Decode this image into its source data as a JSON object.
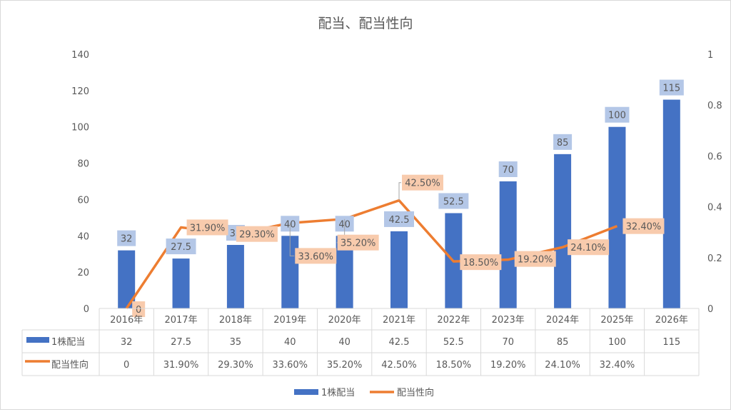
{
  "chart_data": {
    "type": "bar+line",
    "title": "配当、配当性向",
    "categories": [
      "2016年",
      "2017年",
      "2018年",
      "2019年",
      "2020年",
      "2021年",
      "2022年",
      "2023年",
      "2024年",
      "2025年",
      "2026年"
    ],
    "series": [
      {
        "name": "1株配当",
        "type": "bar",
        "axis": "left",
        "color": "#4472c4",
        "label_bg": "#b4c7e7",
        "values": [
          32,
          27.5,
          35,
          40,
          40,
          42.5,
          52.5,
          70,
          85,
          100,
          115
        ],
        "labels": [
          "32",
          "27.5",
          "35",
          "40",
          "40",
          "42.5",
          "52.5",
          "70",
          "85",
          "100",
          "115"
        ]
      },
      {
        "name": "配当性向",
        "type": "line",
        "axis": "right",
        "color": "#ed7d31",
        "label_bg": "#f8cbad",
        "values": [
          0,
          0.319,
          0.293,
          0.336,
          0.352,
          0.425,
          0.185,
          0.192,
          0.241,
          0.324,
          null
        ],
        "labels": [
          "0",
          "31.90%",
          "29.30%",
          "33.60%",
          "35.20%",
          "42.50%",
          "18.50%",
          "19.20%",
          "24.10%",
          "32.40%",
          ""
        ]
      }
    ],
    "y_left": {
      "range": [
        0,
        140
      ],
      "ticks": [
        "0",
        "20",
        "40",
        "60",
        "80",
        "100",
        "120",
        "140"
      ]
    },
    "y_right": {
      "range": [
        0,
        1
      ],
      "ticks": [
        "0",
        "0.2",
        "0.4",
        "0.6",
        "0.8",
        "1"
      ]
    },
    "data_table": true,
    "legend": "bottom"
  }
}
